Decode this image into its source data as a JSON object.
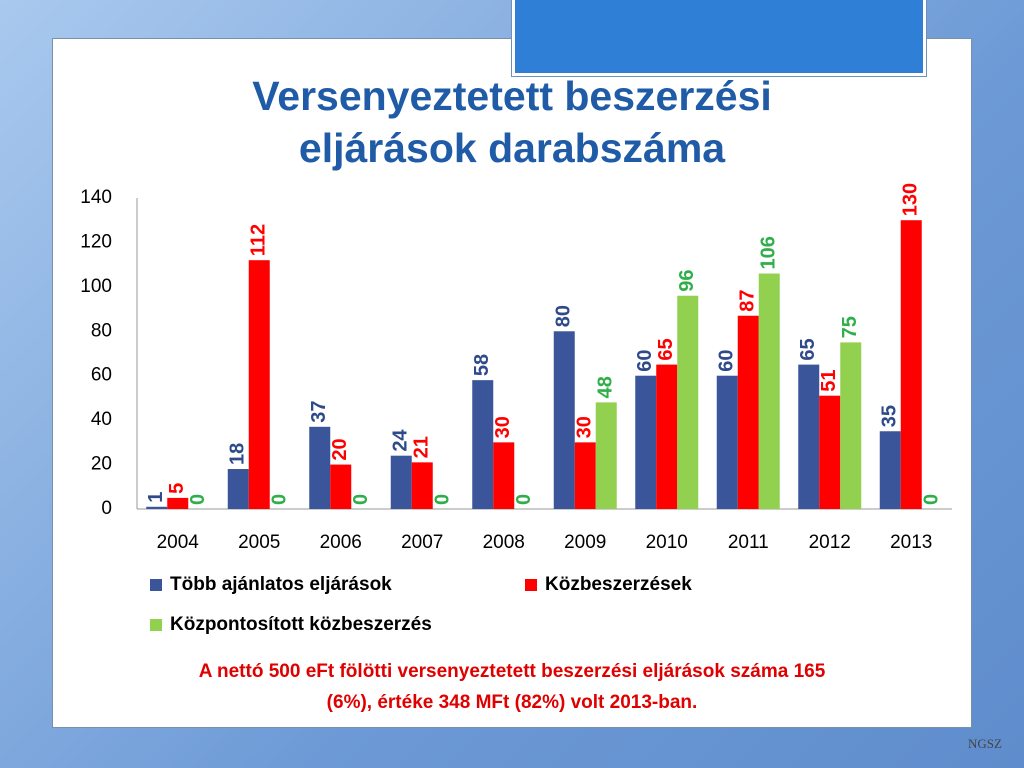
{
  "chart_data": {
    "type": "bar",
    "title": "Versenyeztetett beszerzési\neljárások darabszáma",
    "categories": [
      "2004",
      "2005",
      "2006",
      "2007",
      "2008",
      "2009",
      "2010",
      "2011",
      "2012",
      "2013"
    ],
    "series": [
      {
        "name": "Több ajánlatos eljárások",
        "color": "#3a5599",
        "values": [
          1,
          18,
          37,
          24,
          58,
          80,
          60,
          60,
          65,
          35
        ]
      },
      {
        "name": "Közbeszerzések",
        "color": "#ff0000",
        "values": [
          5,
          112,
          20,
          21,
          30,
          30,
          65,
          87,
          51,
          130
        ]
      },
      {
        "name": "Központosított közbeszerzés",
        "color": "#92d050",
        "values": [
          0,
          0,
          0,
          0,
          0,
          48,
          96,
          106,
          75,
          0
        ]
      }
    ],
    "ylim": [
      0,
      140
    ],
    "yticks": [
      0,
      20,
      40,
      60,
      80,
      100,
      120,
      140
    ],
    "grid": false,
    "data_labels": true,
    "note": "A nettó 500 eFt fölötti versenyeztetett beszerzési eljárások száma 165\n(6%), értéke 348 MFt (82%) volt 2013-ban.",
    "logo": "NGSZ"
  }
}
